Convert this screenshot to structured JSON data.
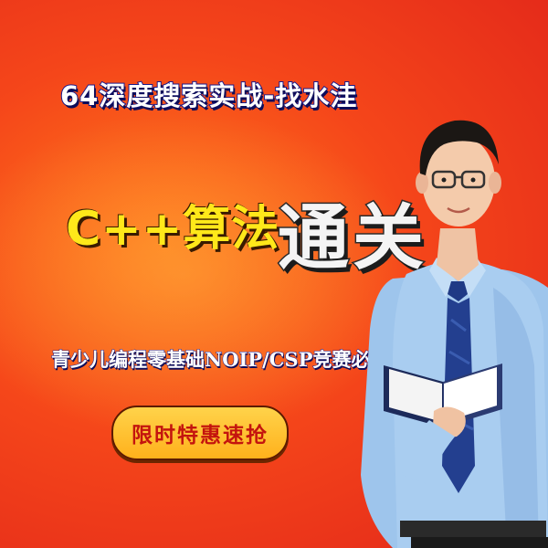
{
  "banner": {
    "top_title": "64深度搜索实战-找水洼",
    "main_title_a": "C++算法",
    "main_title_b": "通关",
    "subtitle": "青少儿编程零基础NOIP/CSP竞赛必备",
    "cta_label": "限时特惠速抢"
  },
  "colors": {
    "background": "#f5461a",
    "accent_yellow": "#ffe81a",
    "title_blue": "#1a1a8c",
    "cta_red": "#c4140e"
  }
}
